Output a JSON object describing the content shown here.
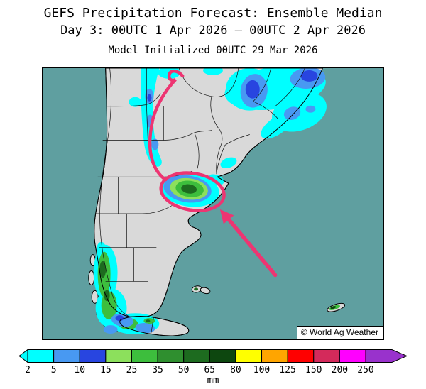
{
  "header": {
    "title": "GEFS Precipitation Forecast: Ensemble Median",
    "subtitle": "Day 3: 00UTC 1 Apr 2026 — 00UTC 2 Apr 2026",
    "init_line": "Model Initialized 00UTC 29 Mar 2026"
  },
  "map": {
    "attribution": "© World Ag Weather",
    "ocean_color": "#5f9fa0",
    "land_color": "#d9d9d9",
    "annotation_color": "#ed3572",
    "annotations": {
      "lasso": "pink outline looping from northwest Argentina down around rain area near Buenos Aires",
      "arrow": "pink arrow pointing northwest at the circled rain maximum"
    }
  },
  "legend": {
    "unit": "mm",
    "values": [
      "2",
      "5",
      "10",
      "15",
      "25",
      "35",
      "50",
      "65",
      "80",
      "100",
      "125",
      "150",
      "200",
      "250"
    ],
    "cell_colors": [
      "#00ffff",
      "#4899f2",
      "#2845e0",
      "#8ce05c",
      "#3dbe3d",
      "#2f8f2f",
      "#1d6b1f",
      "#0d470f",
      "#ffff00",
      "#ffa500",
      "#ff0000",
      "#d42a5b",
      "#ff00ff"
    ],
    "left_arrow_color": "#00ffff",
    "right_arrow_color": "#9932cc"
  }
}
